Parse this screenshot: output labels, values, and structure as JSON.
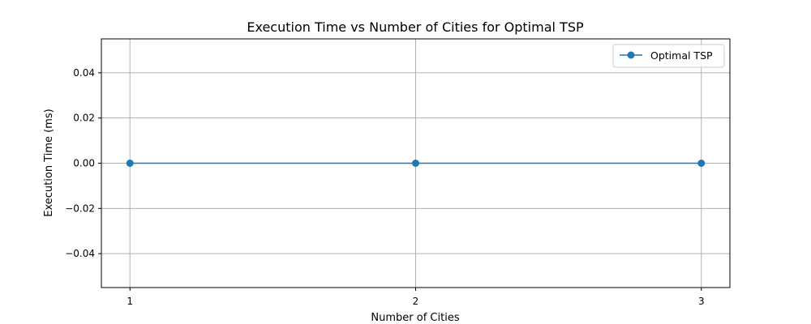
{
  "chart_data": {
    "type": "line",
    "title": "Execution Time vs Number of Cities for Optimal TSP",
    "xlabel": "Number of Cities",
    "ylabel": "Execution Time (ms)",
    "x": [
      1,
      2,
      3
    ],
    "xticks": [
      1,
      2,
      3
    ],
    "xtick_labels": [
      "1",
      "2",
      "3"
    ],
    "xlim": [
      0.9,
      3.1
    ],
    "ylim": [
      -0.055,
      0.055
    ],
    "yticks": [
      -0.04,
      -0.02,
      0.0,
      0.02,
      0.04
    ],
    "ytick_labels": [
      "−0.04",
      "−0.02",
      "0.00",
      "0.02",
      "0.04"
    ],
    "grid": true,
    "legend_position": "top-right",
    "series": [
      {
        "name": "Optimal TSP",
        "values": [
          0,
          0,
          0
        ],
        "color": "#1f77b4",
        "marker": "circle"
      }
    ]
  }
}
